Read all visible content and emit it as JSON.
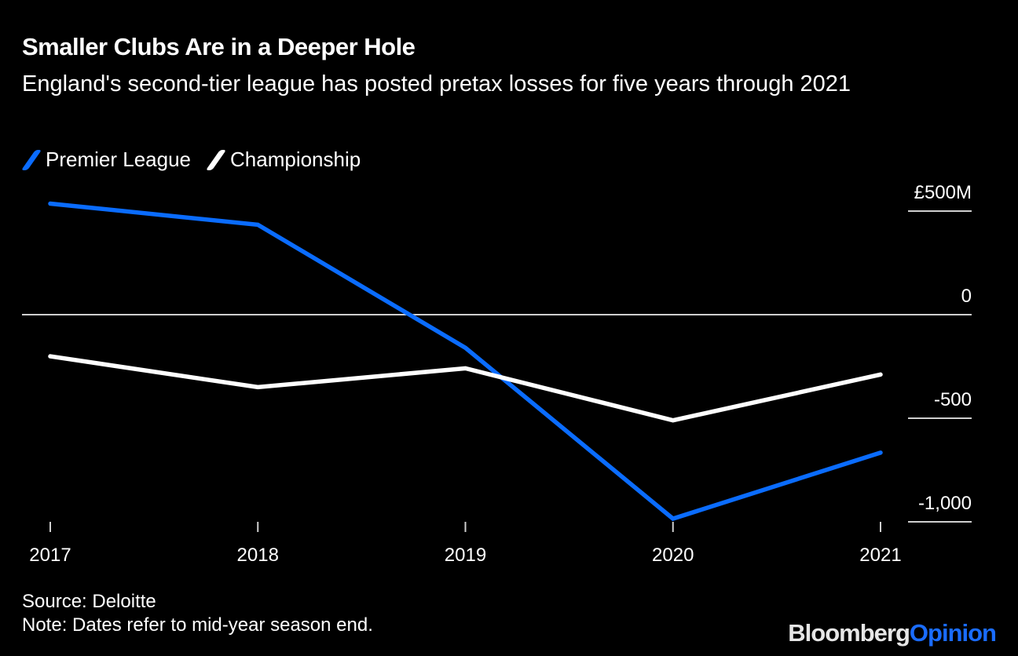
{
  "header": {
    "title": "Smaller Clubs Are in a Deeper Hole",
    "subtitle": "England's second-tier league has posted pretax losses for five years through 2021"
  },
  "legend": [
    {
      "label": "Premier League",
      "color": "#0a6cff"
    },
    {
      "label": "Championship",
      "color": "#ffffff"
    }
  ],
  "footer": {
    "source": "Source: Deloitte",
    "note": "Note: Dates refer to mid-year season end."
  },
  "logo": {
    "part1": "Bloomberg",
    "part2": "Opinion"
  },
  "chart_data": {
    "type": "line",
    "title": "Smaller Clubs Are in a Deeper Hole",
    "subtitle": "England's second-tier league has posted pretax losses for five years through 2021",
    "xlabel": "",
    "ylabel": "",
    "x": [
      "2017",
      "2018",
      "2019",
      "2020",
      "2021"
    ],
    "ylim": [
      -1000,
      500
    ],
    "yticks": [
      500,
      0,
      -500,
      -1000
    ],
    "ytick_labels": [
      "£500M",
      "0",
      "-500",
      "-1,000"
    ],
    "y_axis_position": "right",
    "grid": false,
    "zero_line": true,
    "legend_position": "top-left",
    "series": [
      {
        "name": "Premier League",
        "color": "#0a6cff",
        "values": [
          536,
          434,
          -160,
          -985,
          -666
        ]
      },
      {
        "name": "Championship",
        "color": "#ffffff",
        "values": [
          -201,
          -350,
          -259,
          -510,
          -289
        ]
      }
    ]
  }
}
